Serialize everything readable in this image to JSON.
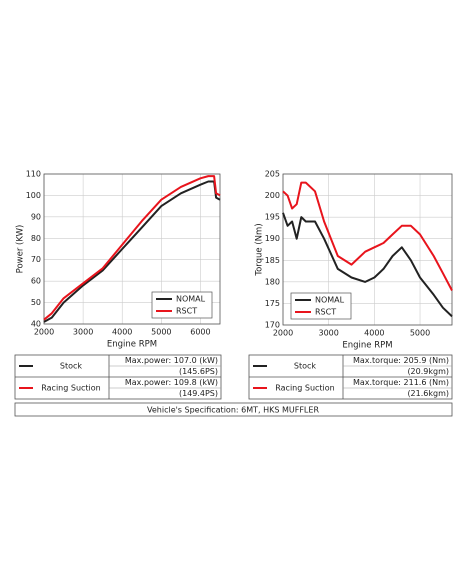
{
  "chart_data": [
    {
      "type": "line",
      "xlabel": "Engine RPM",
      "ylabel": "Power (KW)",
      "x": [
        2000,
        2200,
        2500,
        3000,
        3500,
        4000,
        4500,
        5000,
        5500,
        6000,
        6200,
        6350,
        6400,
        6500
      ],
      "series": [
        {
          "name": "NOMAL",
          "color": "#222222",
          "values": [
            41,
            43,
            50,
            58,
            65,
            75,
            85,
            95,
            101,
            105,
            106.5,
            106.5,
            99,
            98
          ]
        },
        {
          "name": "RSCT",
          "color": "#e8141c",
          "values": [
            42,
            45,
            52,
            59,
            66,
            77,
            88,
            98,
            104,
            108,
            109,
            109,
            101,
            100
          ]
        }
      ],
      "xlim": [
        2000,
        6500
      ],
      "xticks": [
        2000,
        3000,
        4000,
        5000,
        6000
      ],
      "ylim": [
        40,
        110
      ],
      "yticks": [
        40,
        50,
        60,
        70,
        80,
        90,
        100,
        110
      ],
      "grid": true,
      "legend": "lower right"
    },
    {
      "type": "line",
      "xlabel": "Engine RPM",
      "ylabel": "Torque (Nm)",
      "x": [
        2000,
        2100,
        2200,
        2300,
        2400,
        2500,
        2700,
        2900,
        3200,
        3500,
        3800,
        4000,
        4200,
        4400,
        4600,
        4800,
        5000,
        5300,
        5500,
        5700
      ],
      "series": [
        {
          "name": "NOMAL",
          "color": "#222222",
          "values": [
            196,
            193,
            194,
            190,
            195,
            194,
            194,
            190,
            183,
            181,
            180,
            181,
            183,
            186,
            188,
            185,
            181,
            177,
            174,
            172
          ]
        },
        {
          "name": "RSCT",
          "color": "#e8141c",
          "values": [
            201,
            200,
            197,
            198,
            203,
            203,
            201,
            194,
            186,
            184,
            187,
            188,
            189,
            191,
            193,
            193,
            191,
            186,
            182,
            178
          ]
        }
      ],
      "xlim": [
        2000,
        5700
      ],
      "xticks": [
        2000,
        3000,
        4000,
        5000
      ],
      "ylim": [
        170,
        205
      ],
      "yticks": [
        170,
        175,
        180,
        185,
        190,
        195,
        200,
        205
      ],
      "grid": true,
      "legend": "lower left"
    }
  ],
  "tables": [
    {
      "rows": [
        {
          "name": "Stock",
          "max": "Max.power: 107.0 (kW)",
          "alt": "(145.6PS)"
        },
        {
          "name": "Racing Suction",
          "max": "Max.power: 109.8 (kW)",
          "alt": "(149.4PS)"
        }
      ]
    },
    {
      "rows": [
        {
          "name": "Stock",
          "max": "Max.torque: 205.9 (Nm)",
          "alt": "(20.9kgm)"
        },
        {
          "name": "Racing Suction",
          "max": "Max.torque: 211.6 (Nm)",
          "alt": "(21.6kgm)"
        }
      ]
    }
  ],
  "specification": "Vehicle's Specification: 6MT, HKS MUFFLER"
}
